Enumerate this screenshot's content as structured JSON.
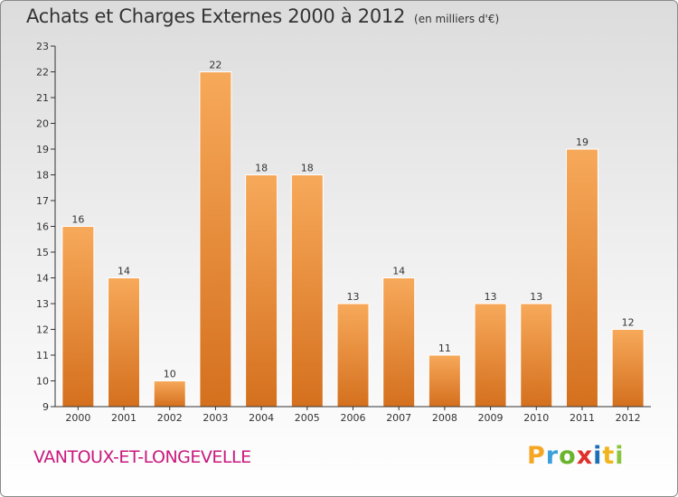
{
  "header": {
    "title": "Achats et Charges Externes 2000 à 2012",
    "unit": "(en milliers d'€)"
  },
  "commune": "VANTOUX-ET-LONGEVELLE",
  "logo": {
    "text": "Proxiti",
    "letters": [
      "P",
      "r",
      "o",
      "x",
      "i",
      "t",
      "i"
    ]
  },
  "chart_data": {
    "type": "bar",
    "title": "Achats et Charges Externes 2000 à 2012",
    "subtitle": "(en milliers d'€)",
    "xlabel": "",
    "ylabel": "",
    "categories": [
      "2000",
      "2001",
      "2002",
      "2003",
      "2004",
      "2005",
      "2006",
      "2007",
      "2008",
      "2009",
      "2010",
      "2011",
      "2012"
    ],
    "values": [
      16,
      14,
      10,
      22,
      18,
      18,
      13,
      14,
      11,
      13,
      13,
      19,
      12
    ],
    "ylim": [
      9,
      23
    ],
    "yticks": [
      9,
      10,
      11,
      12,
      13,
      14,
      15,
      16,
      17,
      18,
      19,
      20,
      21,
      22,
      23
    ],
    "grid": false,
    "legend": "none",
    "colors": {
      "bar_top": "#f7a95a",
      "bar_bottom": "#d4701e",
      "axis": "#333333"
    }
  }
}
